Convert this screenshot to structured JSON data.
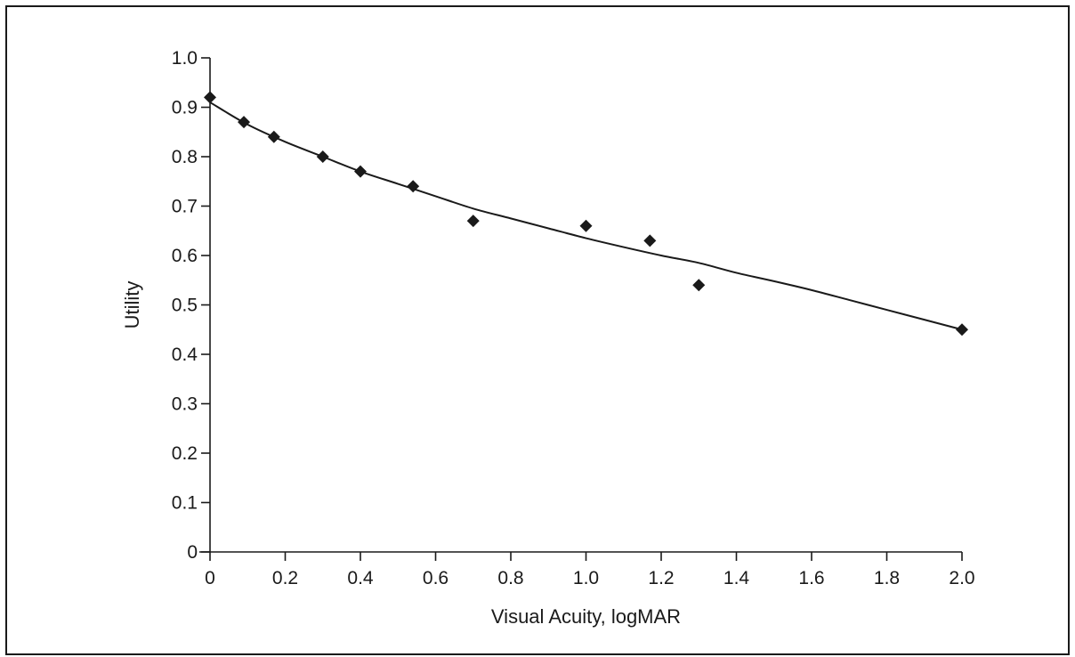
{
  "chart_data": {
    "type": "scatter",
    "xlabel": "Visual Acuity, logMAR",
    "ylabel": "Utility",
    "xlim": [
      0,
      2.0
    ],
    "ylim": [
      0,
      1.0
    ],
    "x_ticks": [
      "0",
      "0.2",
      "0.4",
      "0.6",
      "0.8",
      "1.0",
      "1.2",
      "1.4",
      "1.6",
      "1.8",
      "2.0"
    ],
    "y_ticks": [
      "0",
      "0.1",
      "0.2",
      "0.3",
      "0.4",
      "0.5",
      "0.6",
      "0.7",
      "0.8",
      "0.9",
      "1.0"
    ],
    "grid": false,
    "marker": "diamond",
    "color": "#1a1a1a",
    "series": [
      {
        "type": "scatter",
        "points": [
          {
            "x": 0.0,
            "y": 0.92
          },
          {
            "x": 0.09,
            "y": 0.87
          },
          {
            "x": 0.17,
            "y": 0.84
          },
          {
            "x": 0.3,
            "y": 0.8
          },
          {
            "x": 0.4,
            "y": 0.77
          },
          {
            "x": 0.54,
            "y": 0.74
          },
          {
            "x": 0.7,
            "y": 0.67
          },
          {
            "x": 1.0,
            "y": 0.66
          },
          {
            "x": 1.17,
            "y": 0.63
          },
          {
            "x": 1.3,
            "y": 0.54
          },
          {
            "x": 2.0,
            "y": 0.45
          }
        ]
      },
      {
        "type": "line",
        "points": [
          {
            "x": 0.0,
            "y": 0.91
          },
          {
            "x": 0.1,
            "y": 0.865
          },
          {
            "x": 0.2,
            "y": 0.83
          },
          {
            "x": 0.3,
            "y": 0.8
          },
          {
            "x": 0.4,
            "y": 0.77
          },
          {
            "x": 0.5,
            "y": 0.745
          },
          {
            "x": 0.6,
            "y": 0.72
          },
          {
            "x": 0.7,
            "y": 0.695
          },
          {
            "x": 0.8,
            "y": 0.675
          },
          {
            "x": 0.9,
            "y": 0.655
          },
          {
            "x": 1.0,
            "y": 0.635
          },
          {
            "x": 1.1,
            "y": 0.617
          },
          {
            "x": 1.2,
            "y": 0.6
          },
          {
            "x": 1.3,
            "y": 0.585
          },
          {
            "x": 1.4,
            "y": 0.565
          },
          {
            "x": 1.5,
            "y": 0.548
          },
          {
            "x": 1.6,
            "y": 0.53
          },
          {
            "x": 1.7,
            "y": 0.51
          },
          {
            "x": 1.8,
            "y": 0.49
          },
          {
            "x": 1.9,
            "y": 0.47
          },
          {
            "x": 2.0,
            "y": 0.45
          }
        ]
      }
    ]
  }
}
